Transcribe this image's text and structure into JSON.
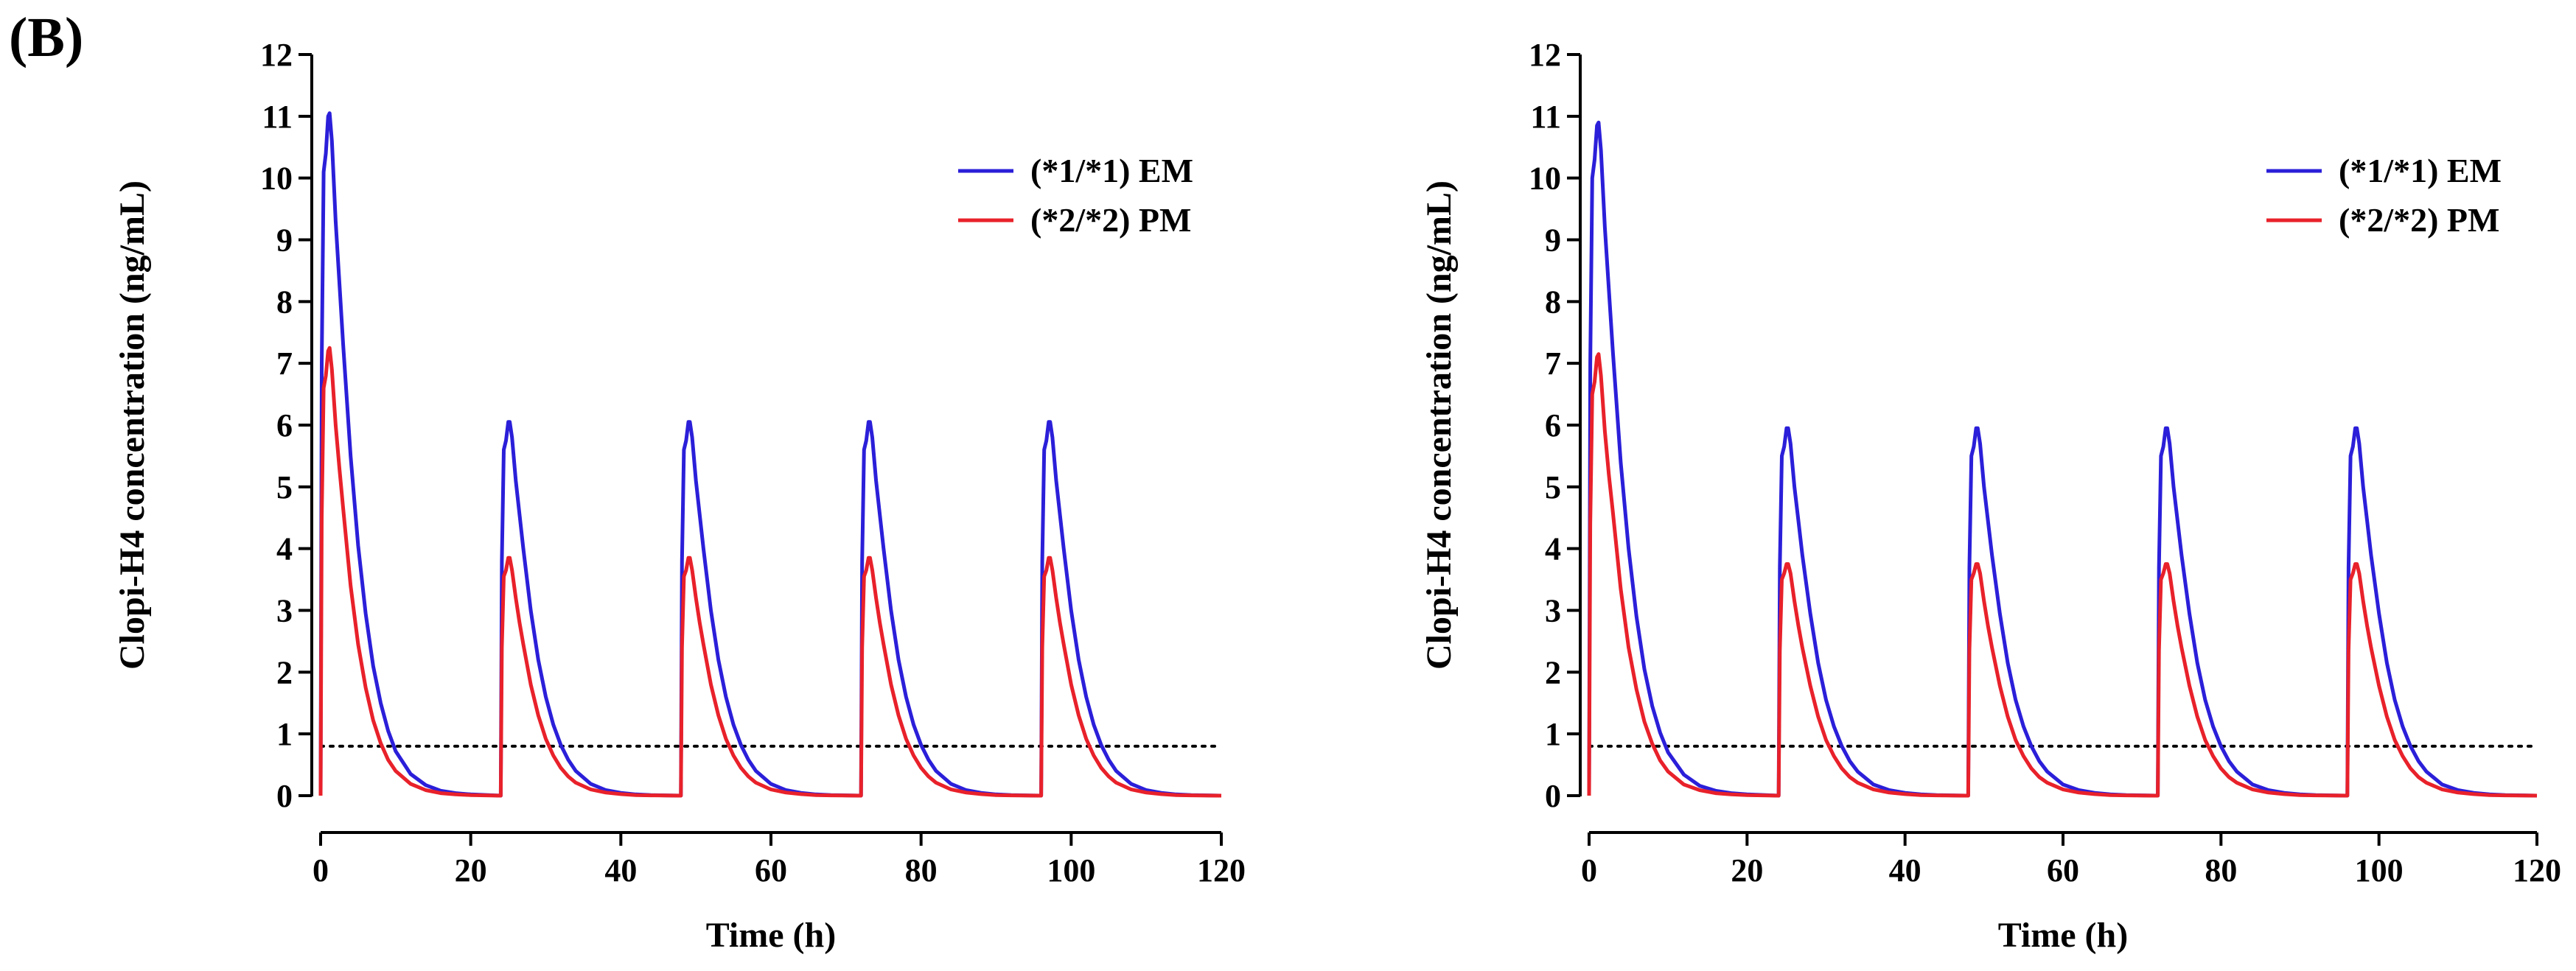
{
  "panel_label": "(B)",
  "chart_data": [
    {
      "type": "line",
      "title": "",
      "xlabel": "Time (h)",
      "ylabel": "Clopi-H4 concentration (ng/mL)",
      "xlim": [
        0,
        120
      ],
      "ylim": [
        0,
        12
      ],
      "xticks": [
        0,
        20,
        40,
        60,
        80,
        100,
        120
      ],
      "yticks": [
        0,
        1,
        2,
        3,
        4,
        5,
        6,
        7,
        8,
        9,
        10,
        11,
        12
      ],
      "grid": false,
      "legend_position": "top-right",
      "reference_line": {
        "y": 0.8,
        "style": "dotted"
      },
      "dose_times": [
        0,
        24,
        48,
        72,
        96
      ],
      "series": [
        {
          "name": "(*1/*1) EM",
          "color": "#2b1fd9",
          "profile": {
            "t": [
              0,
              0.15,
              0.4,
              0.7,
              1.0,
              1.2,
              1.5,
              2,
              2.5,
              3,
              4,
              5,
              6,
              7,
              8,
              9,
              10,
              12,
              14,
              16,
              18,
              20,
              24
            ],
            "c": [
              0,
              7.0,
              10.1,
              10.4,
              11.0,
              11.05,
              10.6,
              9.3,
              8.3,
              7.3,
              5.5,
              4.05,
              2.95,
              2.1,
              1.5,
              1.05,
              0.72,
              0.35,
              0.17,
              0.08,
              0.04,
              0.02,
              0.0
            ]
          },
          "maintenance_profile": {
            "t": [
              0,
              0.15,
              0.4,
              0.7,
              1.0,
              1.2,
              1.5,
              2,
              2.5,
              3,
              4,
              5,
              6,
              7,
              8,
              9,
              10,
              12,
              14,
              16,
              18,
              20,
              24
            ],
            "c": [
              0,
              3.8,
              5.6,
              5.75,
              6.05,
              6.05,
              5.8,
              5.1,
              4.55,
              4.0,
              3.0,
              2.2,
              1.6,
              1.15,
              0.82,
              0.58,
              0.4,
              0.19,
              0.09,
              0.045,
              0.02,
              0.01,
              0.0
            ]
          }
        },
        {
          "name": "(*2/*2) PM",
          "color": "#e8212a",
          "profile": {
            "t": [
              0,
              0.15,
              0.4,
              0.7,
              1.0,
              1.2,
              1.5,
              2,
              2.5,
              3,
              4,
              5,
              6,
              7,
              8,
              9,
              10,
              12,
              14,
              16,
              18,
              20,
              24
            ],
            "c": [
              0,
              4.5,
              6.6,
              6.8,
              7.2,
              7.25,
              6.9,
              6.0,
              5.3,
              4.65,
              3.4,
              2.45,
              1.75,
              1.22,
              0.85,
              0.58,
              0.4,
              0.19,
              0.09,
              0.04,
              0.02,
              0.01,
              0.0
            ]
          },
          "maintenance_profile": {
            "t": [
              0,
              0.15,
              0.4,
              0.7,
              1.0,
              1.2,
              1.5,
              2,
              2.5,
              3,
              4,
              5,
              6,
              7,
              8,
              9,
              10,
              12,
              14,
              16,
              18,
              20,
              24
            ],
            "c": [
              0,
              2.4,
              3.55,
              3.65,
              3.85,
              3.85,
              3.65,
              3.2,
              2.8,
              2.45,
              1.8,
              1.3,
              0.92,
              0.65,
              0.45,
              0.31,
              0.21,
              0.1,
              0.05,
              0.025,
              0.01,
              0.005,
              0.0
            ]
          }
        }
      ]
    },
    {
      "type": "line",
      "title": "",
      "xlabel": "Time (h)",
      "ylabel": "Clopi-H4 concentration (ng/mL)",
      "xlim": [
        0,
        120
      ],
      "ylim": [
        0,
        12
      ],
      "xticks": [
        0,
        20,
        40,
        60,
        80,
        100,
        120
      ],
      "yticks": [
        0,
        1,
        2,
        3,
        4,
        5,
        6,
        7,
        8,
        9,
        10,
        11,
        12
      ],
      "grid": false,
      "legend_position": "top-right",
      "reference_line": {
        "y": 0.8,
        "style": "dotted"
      },
      "dose_times": [
        0,
        24,
        48,
        72,
        96
      ],
      "series": [
        {
          "name": "(*1/*1) EM",
          "color": "#2b1fd9",
          "profile": {
            "t": [
              0,
              0.15,
              0.4,
              0.7,
              1.0,
              1.2,
              1.5,
              2,
              2.5,
              3,
              4,
              5,
              6,
              7,
              8,
              9,
              10,
              12,
              14,
              16,
              18,
              20,
              24
            ],
            "c": [
              0,
              7.0,
              10.0,
              10.3,
              10.85,
              10.9,
              10.45,
              9.2,
              8.2,
              7.2,
              5.4,
              4.0,
              2.9,
              2.05,
              1.45,
              1.02,
              0.7,
              0.34,
              0.16,
              0.08,
              0.04,
              0.02,
              0.0
            ]
          },
          "maintenance_profile": {
            "t": [
              0,
              0.15,
              0.4,
              0.7,
              1.0,
              1.2,
              1.5,
              2,
              2.5,
              3,
              4,
              5,
              6,
              7,
              8,
              9,
              10,
              12,
              14,
              16,
              18,
              20,
              24
            ],
            "c": [
              0,
              3.7,
              5.5,
              5.65,
              5.95,
              5.95,
              5.7,
              5.0,
              4.45,
              3.9,
              2.95,
              2.15,
              1.55,
              1.12,
              0.8,
              0.56,
              0.39,
              0.18,
              0.09,
              0.045,
              0.02,
              0.01,
              0.0
            ]
          }
        },
        {
          "name": "(*2/*2) PM",
          "color": "#e8212a",
          "profile": {
            "t": [
              0,
              0.15,
              0.4,
              0.7,
              1.0,
              1.2,
              1.5,
              2,
              2.5,
              3,
              4,
              5,
              6,
              7,
              8,
              9,
              10,
              12,
              14,
              16,
              18,
              20,
              24
            ],
            "c": [
              0,
              4.4,
              6.5,
              6.7,
              7.1,
              7.15,
              6.8,
              5.9,
              5.2,
              4.6,
              3.35,
              2.4,
              1.72,
              1.2,
              0.84,
              0.57,
              0.39,
              0.18,
              0.09,
              0.04,
              0.02,
              0.01,
              0.0
            ]
          },
          "maintenance_profile": {
            "t": [
              0,
              0.15,
              0.4,
              0.7,
              1.0,
              1.2,
              1.5,
              2,
              2.5,
              3,
              4,
              5,
              6,
              7,
              8,
              9,
              10,
              12,
              14,
              16,
              18,
              20,
              24
            ],
            "c": [
              0,
              2.35,
              3.5,
              3.6,
              3.75,
              3.75,
              3.6,
              3.15,
              2.75,
              2.4,
              1.78,
              1.28,
              0.9,
              0.64,
              0.44,
              0.3,
              0.21,
              0.1,
              0.05,
              0.025,
              0.01,
              0.005,
              0.0
            ]
          }
        }
      ]
    }
  ]
}
